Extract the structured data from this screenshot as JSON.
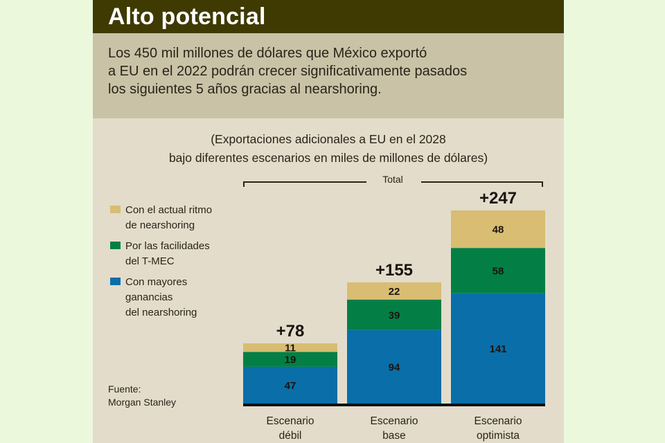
{
  "header": {
    "title": "Alto potencial",
    "intro": [
      "Los 450 mil millones de dólares que México exportó",
      "a EU en el 2022 podrán crecer significativamente pasados",
      "los siguientes 5 años gracias al nearshoring."
    ]
  },
  "source": {
    "label": "Fuente:",
    "name": "Morgan Stanley"
  },
  "colors": {
    "page_background": "#ebf8dc",
    "panel_background": "#e3dccb",
    "title_bar": "#3f3a02",
    "intro_background": "#c9c2a6",
    "series": [
      "#0a6ea8",
      "#037f46",
      "#d8bd72"
    ],
    "baseline": "#111111"
  },
  "chart_data": {
    "type": "bar",
    "stacked": true,
    "title": "(Exportaciones adicionales a EU en el 2028",
    "subtitle": "bajo diferentes escenarios en miles de millones de dólares)",
    "bracket_label": "Total",
    "categories": [
      [
        "Escenario",
        "débil"
      ],
      [
        "Escenario",
        "base"
      ],
      [
        "Escenario",
        "optimista"
      ]
    ],
    "series": [
      {
        "name": "Con mayores ganancias del nearshoring",
        "legend_lines": [
          "Con mayores",
          "ganancias",
          "del nearshoring"
        ],
        "color": "#0a6ea8",
        "values": [
          47,
          94,
          141
        ]
      },
      {
        "name": "Por las facilidades del T-MEC",
        "legend_lines": [
          "Por las facilidades",
          "del T-MEC"
        ],
        "color": "#037f46",
        "values": [
          19,
          39,
          58
        ]
      },
      {
        "name": "Con el actual ritmo de nearshoring",
        "legend_lines": [
          "Con el actual ritmo",
          "de nearshoring"
        ],
        "color": "#d8bd72",
        "values": [
          11,
          22,
          48
        ]
      }
    ],
    "totals": [
      "+78",
      "+155",
      "+247"
    ],
    "total_values": [
      78,
      155,
      247
    ],
    "legend_order": [
      2,
      1,
      0
    ],
    "legend_position": "left",
    "ylim": [
      0,
      247
    ],
    "grid": false,
    "xlabel": "",
    "ylabel": ""
  }
}
